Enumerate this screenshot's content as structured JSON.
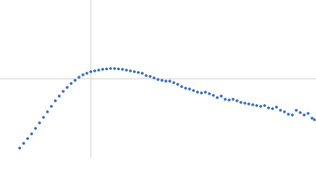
{
  "chart_data": {
    "type": "scatter",
    "x": [
      -0.9,
      -0.85,
      -0.8,
      -0.75,
      -0.7,
      -0.65,
      -0.6,
      -0.55,
      -0.5,
      -0.45,
      -0.4,
      -0.35,
      -0.3,
      -0.25,
      -0.2,
      -0.15,
      -0.1,
      -0.05,
      0,
      0.05,
      0.1,
      0.15,
      0.2,
      0.25,
      0.3,
      0.35,
      0.4,
      0.45,
      0.5,
      0.55,
      0.6,
      0.65,
      0.7,
      0.75,
      0.8,
      0.85,
      0.9,
      0.95,
      1,
      1.05,
      1.1,
      1.15,
      1.2,
      1.25,
      1.3,
      1.35,
      1.4,
      1.45,
      1.5,
      1.55,
      1.6,
      1.65,
      1.7,
      1.75,
      1.8,
      1.85,
      1.9,
      1.95,
      2,
      2.05,
      2.1,
      2.15,
      2.2,
      2.25,
      2.3,
      2.35,
      2.4,
      2.45,
      2.5,
      2.55,
      2.6,
      2.65,
      2.7,
      2.75,
      2.8,
      2.83
    ],
    "values": [
      -0.88,
      -0.82,
      -0.76,
      -0.7,
      -0.63,
      -0.56,
      -0.49,
      -0.42,
      -0.35,
      -0.28,
      -0.22,
      -0.16,
      -0.11,
      -0.06,
      -0.02,
      0.02,
      0.05,
      0.07,
      0.09,
      0.1,
      0.11,
      0.12,
      0.125,
      0.13,
      0.13,
      0.125,
      0.12,
      0.11,
      0.1,
      0.09,
      0.08,
      0.07,
      0.04,
      0.03,
      0.01,
      -0.01,
      -0.02,
      -0.03,
      -0.03,
      -0.05,
      -0.07,
      -0.1,
      -0.12,
      -0.13,
      -0.15,
      -0.17,
      -0.18,
      -0.17,
      -0.19,
      -0.21,
      -0.24,
      -0.22,
      -0.26,
      -0.27,
      -0.26,
      -0.28,
      -0.3,
      -0.31,
      -0.32,
      -0.33,
      -0.34,
      -0.35,
      -0.34,
      -0.37,
      -0.38,
      -0.36,
      -0.4,
      -0.42,
      -0.45,
      -0.46,
      -0.4,
      -0.43,
      -0.46,
      -0.44,
      -0.5,
      -0.52
    ],
    "color": "#3a6cb8",
    "xlim": [
      -1.15,
      2.85
    ],
    "ylim": [
      -1,
      1
    ],
    "zero_lines": true
  }
}
